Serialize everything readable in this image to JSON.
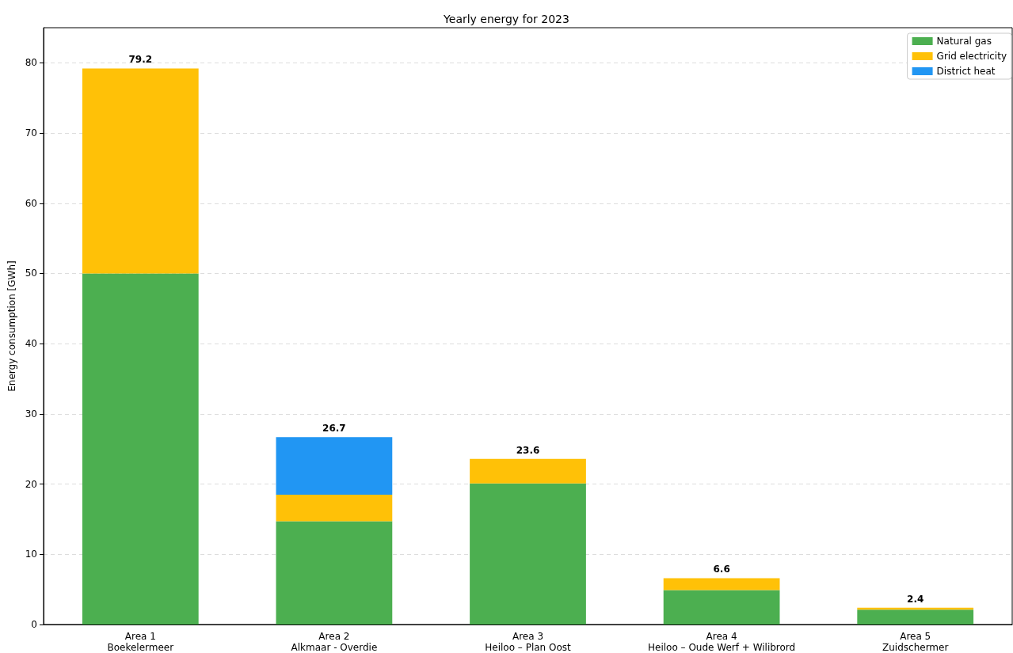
{
  "chart_data": {
    "type": "bar",
    "title": "Yearly energy for 2023",
    "ylabel": "Energy consumption [GWh]",
    "categories": [
      "Area 1\nBoekelermeer",
      "Area 2\nAlkmaar - Overdie",
      "Area 3\nHeiloo – Plan Oost",
      "Area 4\nHeiloo – Oude Werf + Wilibrord",
      "Area 5\nZuidschermer"
    ],
    "series": [
      {
        "name": "Natural gas",
        "color": "#4caf50",
        "values": [
          50.0,
          14.7,
          20.1,
          4.9,
          2.1
        ]
      },
      {
        "name": "Grid electricity",
        "color": "#ffc107",
        "values": [
          29.2,
          3.8,
          3.5,
          1.7,
          0.3
        ]
      },
      {
        "name": "District heat",
        "color": "#2196f3",
        "values": [
          null,
          8.2,
          null,
          null,
          null
        ]
      }
    ],
    "stacked": true,
    "totals": [
      "79.2",
      "26.7",
      "23.6",
      "6.6",
      "2.4"
    ],
    "ylim": [
      0,
      85
    ],
    "yticks": [
      0,
      10,
      20,
      30,
      40,
      50,
      60,
      70,
      80
    ],
    "grid": "y",
    "legend": "top right"
  }
}
